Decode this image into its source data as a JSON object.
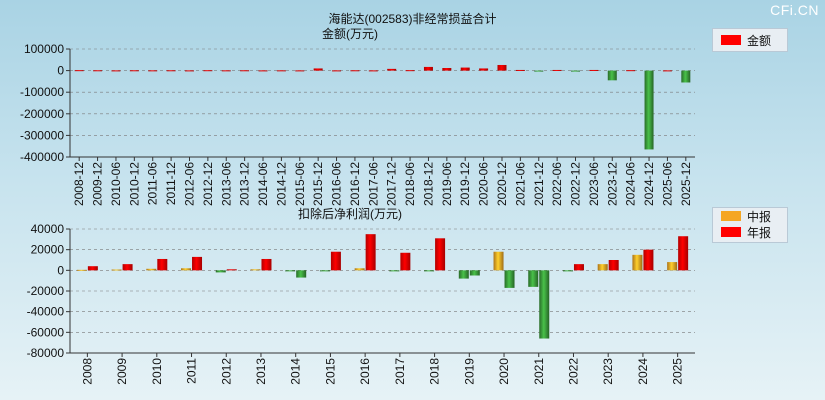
{
  "header": {
    "title": "海能达(002583)非经常损益合计",
    "watermark": "CFi.CN"
  },
  "chart_data": [
    {
      "type": "bar",
      "title": "金额(万元)",
      "legend": "top-right",
      "ylim": [
        -400000,
        100000
      ],
      "yticks": [
        100000,
        0,
        -100000,
        -200000,
        -300000,
        -400000
      ],
      "ytick_labels": [
        "100000",
        "0",
        "-100000",
        "-200000",
        "-300000",
        "-400000"
      ],
      "categories": [
        "2008-12",
        "2009-12",
        "2010-06",
        "2010-12",
        "2011-06",
        "2011-12",
        "2012-06",
        "2012-12",
        "2013-06",
        "2013-12",
        "2014-06",
        "2014-12",
        "2015-06",
        "2015-12",
        "2016-06",
        "2016-12",
        "2017-06",
        "2017-12",
        "2018-06",
        "2018-12",
        "2019-06",
        "2019-12",
        "2020-06",
        "2020-12",
        "2021-06",
        "2021-12",
        "2022-06",
        "2022-12",
        "2023-06",
        "2023-12",
        "2024-06",
        "2024-12",
        "2025-06",
        "2025-12"
      ],
      "series": [
        {
          "name": "金额",
          "color": "#ff0000",
          "neg_color": "#3a9a3a",
          "values": [
            2000,
            1500,
            1000,
            1500,
            1200,
            1500,
            1000,
            1800,
            1200,
            1500,
            1000,
            1200,
            1000,
            10000,
            1000,
            1500,
            1000,
            8000,
            2000,
            17000,
            12000,
            14000,
            10000,
            26000,
            3000,
            -2000,
            3000,
            -1000,
            3000,
            -45000,
            2000,
            -365000,
            1000,
            -55000
          ]
        }
      ]
    },
    {
      "type": "bar",
      "title": "扣除后净利润(万元)",
      "legend": "top-right",
      "ylim": [
        -80000,
        40000
      ],
      "yticks": [
        40000,
        20000,
        0,
        -20000,
        -40000,
        -60000,
        -80000
      ],
      "ytick_labels": [
        "40000",
        "20000",
        "0",
        "-20000",
        "-40000",
        "-60000",
        "-80000"
      ],
      "categories": [
        "2008",
        "2009",
        "2010",
        "2011",
        "2012",
        "2013",
        "2014",
        "2015",
        "2016",
        "2017",
        "2018",
        "2019",
        "2020",
        "2021",
        "2022",
        "2023",
        "2024",
        "2025"
      ],
      "series": [
        {
          "name": "中报",
          "color": "#f5a623",
          "neg_color": "#3a9a3a",
          "values": [
            500,
            800,
            1500,
            2000,
            -2000,
            1000,
            -1000,
            -1000,
            2000,
            -1000,
            -1000,
            -8000,
            18000,
            -16000,
            -1000,
            6000,
            15000,
            8000
          ]
        },
        {
          "name": "年报",
          "color": "#ff0000",
          "neg_color": "#3a9a3a",
          "values": [
            4000,
            6000,
            11000,
            13000,
            1000,
            11000,
            -7000,
            18000,
            35000,
            17000,
            31000,
            -5000,
            -17000,
            -66000,
            6000,
            10000,
            20000,
            33000
          ]
        }
      ]
    }
  ]
}
